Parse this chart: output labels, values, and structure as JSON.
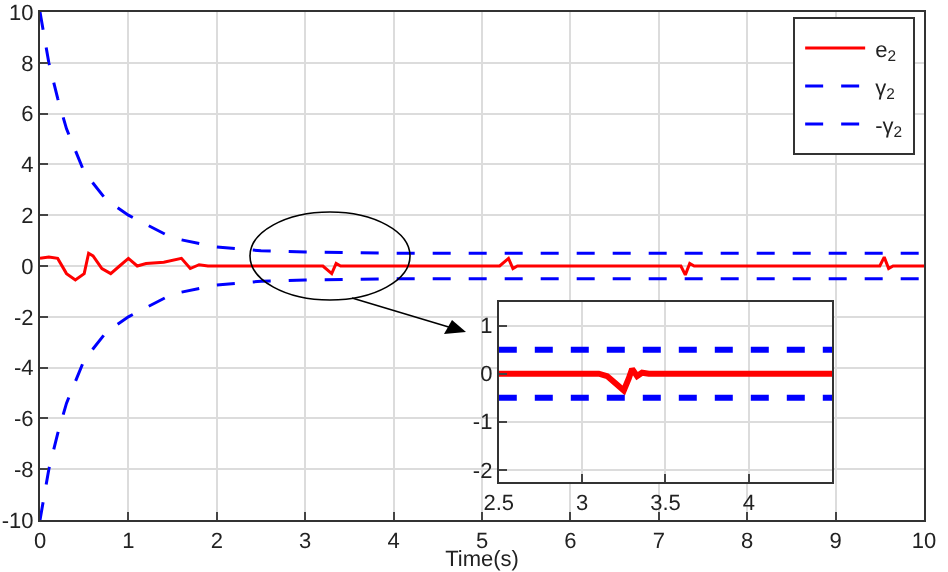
{
  "chart_data": [
    {
      "type": "line",
      "xlabel": "Time(s)",
      "xlim": [
        0,
        10
      ],
      "ylim": [
        -10,
        10
      ],
      "xticks": [
        0,
        1,
        2,
        3,
        4,
        5,
        6,
        7,
        8,
        9,
        10
      ],
      "yticks": [
        -10,
        -8,
        -6,
        -4,
        -2,
        0,
        2,
        4,
        6,
        8,
        10
      ],
      "grid": true,
      "legend": "top right",
      "series": [
        {
          "name": "e$_{2}$",
          "color": "#ff0000",
          "line_style": "solid",
          "x": [
            0,
            0.1,
            0.2,
            0.3,
            0.4,
            0.5,
            0.55,
            0.6,
            0.7,
            0.8,
            0.9,
            1.0,
            1.1,
            1.2,
            1.4,
            1.6,
            1.7,
            1.8,
            1.9,
            3.2,
            3.3,
            3.35,
            3.4,
            5.2,
            5.3,
            5.35,
            5.4,
            7.25,
            7.3,
            7.35,
            7.4,
            9.5,
            9.55,
            9.6,
            9.65,
            10
          ],
          "values": [
            0.3,
            0.35,
            0.3,
            -0.3,
            -0.55,
            -0.3,
            0.5,
            0.4,
            -0.1,
            -0.3,
            0,
            0.3,
            0,
            0.1,
            0.15,
            0.3,
            -0.1,
            0.05,
            0,
            0,
            -0.3,
            0.1,
            0,
            0,
            0.3,
            -0.1,
            0,
            0,
            -0.35,
            0.1,
            0,
            0,
            0.35,
            -0.1,
            0,
            0
          ]
        },
        {
          "name": "γ$_{2}$",
          "color": "#0000ff",
          "line_style": "dashed",
          "x": [
            0,
            0.1,
            0.2,
            0.3,
            0.5,
            0.75,
            1,
            1.5,
            2,
            2.5,
            3,
            4,
            10
          ],
          "values": [
            10,
            8,
            6.6,
            5.4,
            3.7,
            2.6,
            2,
            1.1,
            0.75,
            0.6,
            0.55,
            0.5,
            0.5
          ]
        },
        {
          "name": "-γ$_{2}$",
          "color": "#0000ff",
          "line_style": "dashed",
          "x": [
            0,
            0.1,
            0.2,
            0.3,
            0.5,
            0.75,
            1,
            1.5,
            2,
            2.5,
            3,
            4,
            10
          ],
          "values": [
            -10,
            -8,
            -6.6,
            -5.4,
            -3.7,
            -2.6,
            -2,
            -1.1,
            -0.75,
            -0.6,
            -0.55,
            -0.5,
            -0.5
          ]
        }
      ]
    },
    {
      "type": "line",
      "xlim": [
        2.5,
        4.5
      ],
      "ylim": [
        -2.25,
        1.5
      ],
      "xticks": [
        2.5,
        3,
        3.5,
        4
      ],
      "yticks": [
        -2,
        -1,
        0,
        1
      ],
      "grid": true,
      "series": [
        {
          "color": "#ff0000",
          "line_style": "solid",
          "x": [
            2.5,
            3.1,
            3.15,
            3.2,
            3.25,
            3.28,
            3.3,
            3.33,
            3.36,
            3.4,
            3.45,
            4.5
          ],
          "values": [
            0,
            0,
            -0.05,
            -0.2,
            -0.35,
            -0.1,
            0.1,
            -0.05,
            0.02,
            0,
            0,
            0
          ]
        },
        {
          "color": "#0000ff",
          "line_style": "dashed",
          "x": [
            2.5,
            4.5
          ],
          "values": [
            0.5,
            0.5
          ]
        },
        {
          "color": "#0000ff",
          "line_style": "dashed",
          "x": [
            2.5,
            4.5
          ],
          "values": [
            -0.5,
            -0.5
          ]
        }
      ]
    }
  ]
}
